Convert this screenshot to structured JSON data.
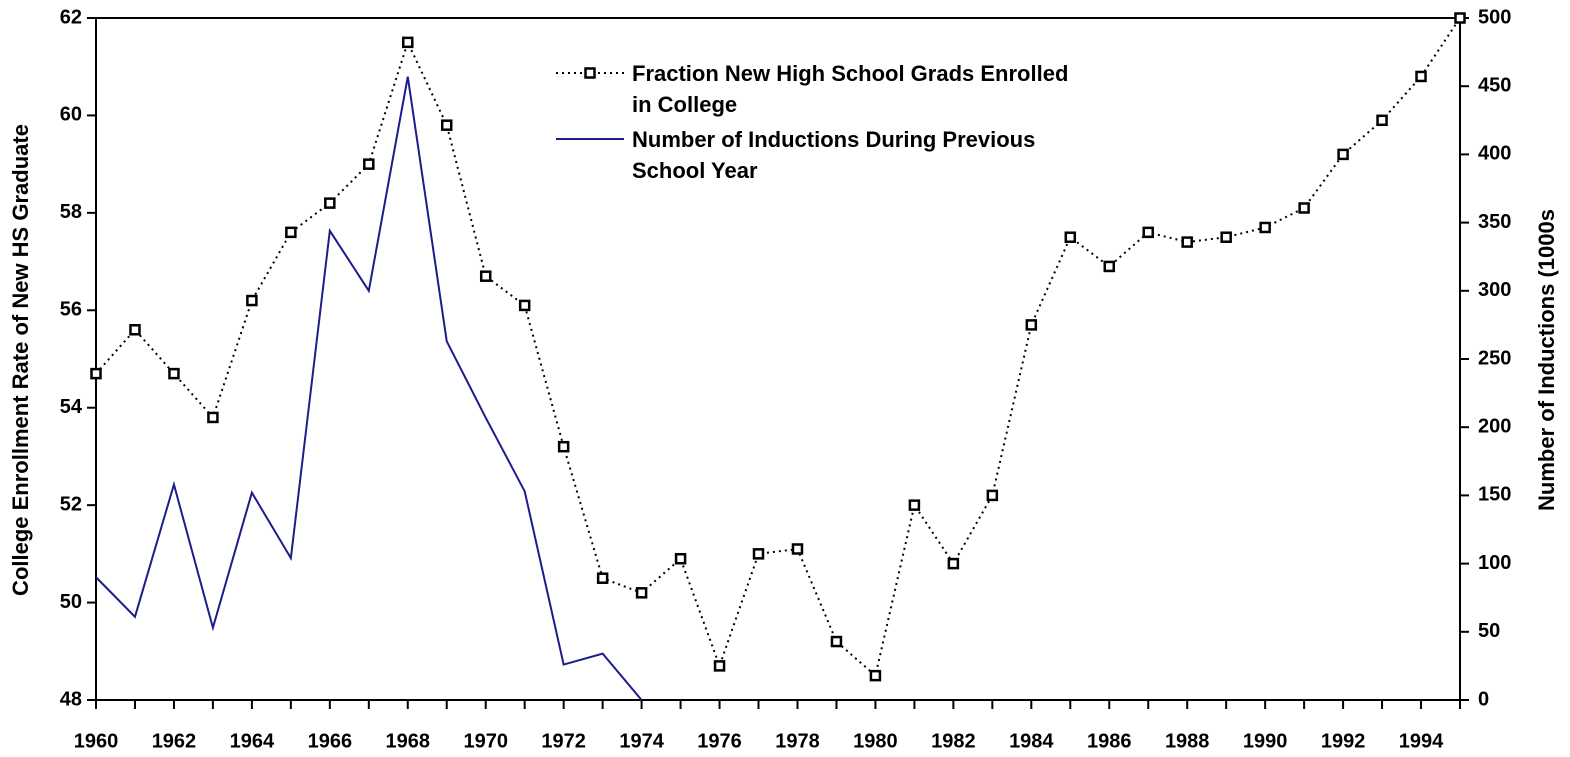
{
  "chart_data": {
    "type": "line",
    "x": [
      1960,
      1961,
      1962,
      1963,
      1964,
      1965,
      1966,
      1967,
      1968,
      1969,
      1970,
      1971,
      1972,
      1973,
      1974,
      1975,
      1976,
      1977,
      1978,
      1979,
      1980,
      1981,
      1982,
      1983,
      1984,
      1985,
      1986,
      1987,
      1988,
      1989,
      1990,
      1991,
      1992,
      1993,
      1994,
      1995
    ],
    "series": [
      {
        "name": "Fraction New High School Grads Enrolled in College",
        "color": "#000000",
        "axis": "y",
        "values": [
          54.7,
          55.6,
          54.7,
          53.8,
          56.2,
          57.6,
          58.2,
          59.0,
          61.5,
          59.8,
          56.7,
          56.1,
          53.2,
          50.5,
          50.2,
          50.9,
          48.7,
          51.0,
          51.1,
          49.2,
          48.5,
          52.0,
          50.8,
          52.2,
          55.7,
          57.5,
          56.9,
          57.6,
          57.4,
          57.5,
          57.7,
          58.1,
          59.2,
          59.9,
          60.8,
          62.0
        ]
      },
      {
        "name": "Number of Inductions During Previous School Year",
        "color": "#1c1c8c",
        "axis": "y2",
        "values": [
          90,
          61,
          158,
          53,
          152,
          104,
          344,
          300,
          457,
          263,
          207,
          153,
          26,
          34,
          0,
          null,
          null,
          null,
          null,
          null,
          null,
          null,
          null,
          null,
          null,
          null,
          null,
          null,
          null,
          null,
          null,
          null,
          null,
          null,
          null,
          null
        ]
      }
    ],
    "y_label": "College Enrollment Rate of New HS Graduate",
    "y2_label": "Number of Inductions (1000s",
    "xlim": [
      1960,
      1995
    ],
    "xticks": [
      1960,
      1962,
      1964,
      1966,
      1968,
      1970,
      1972,
      1974,
      1976,
      1978,
      1980,
      1982,
      1984,
      1986,
      1988,
      1990,
      1992,
      1994
    ],
    "xminorticks": [
      1961,
      1963,
      1965,
      1967,
      1969,
      1971,
      1973,
      1975,
      1977,
      1979,
      1981,
      1983,
      1985,
      1987,
      1989,
      1991,
      1993,
      1995
    ],
    "ylim": [
      48,
      62
    ],
    "yticks": [
      48,
      50,
      52,
      54,
      56,
      58,
      60,
      62
    ],
    "y2lim": [
      0,
      500
    ],
    "y2ticks": [
      0,
      50,
      100,
      150,
      200,
      250,
      300,
      350,
      400,
      450,
      500
    ],
    "legend": "top-center"
  }
}
